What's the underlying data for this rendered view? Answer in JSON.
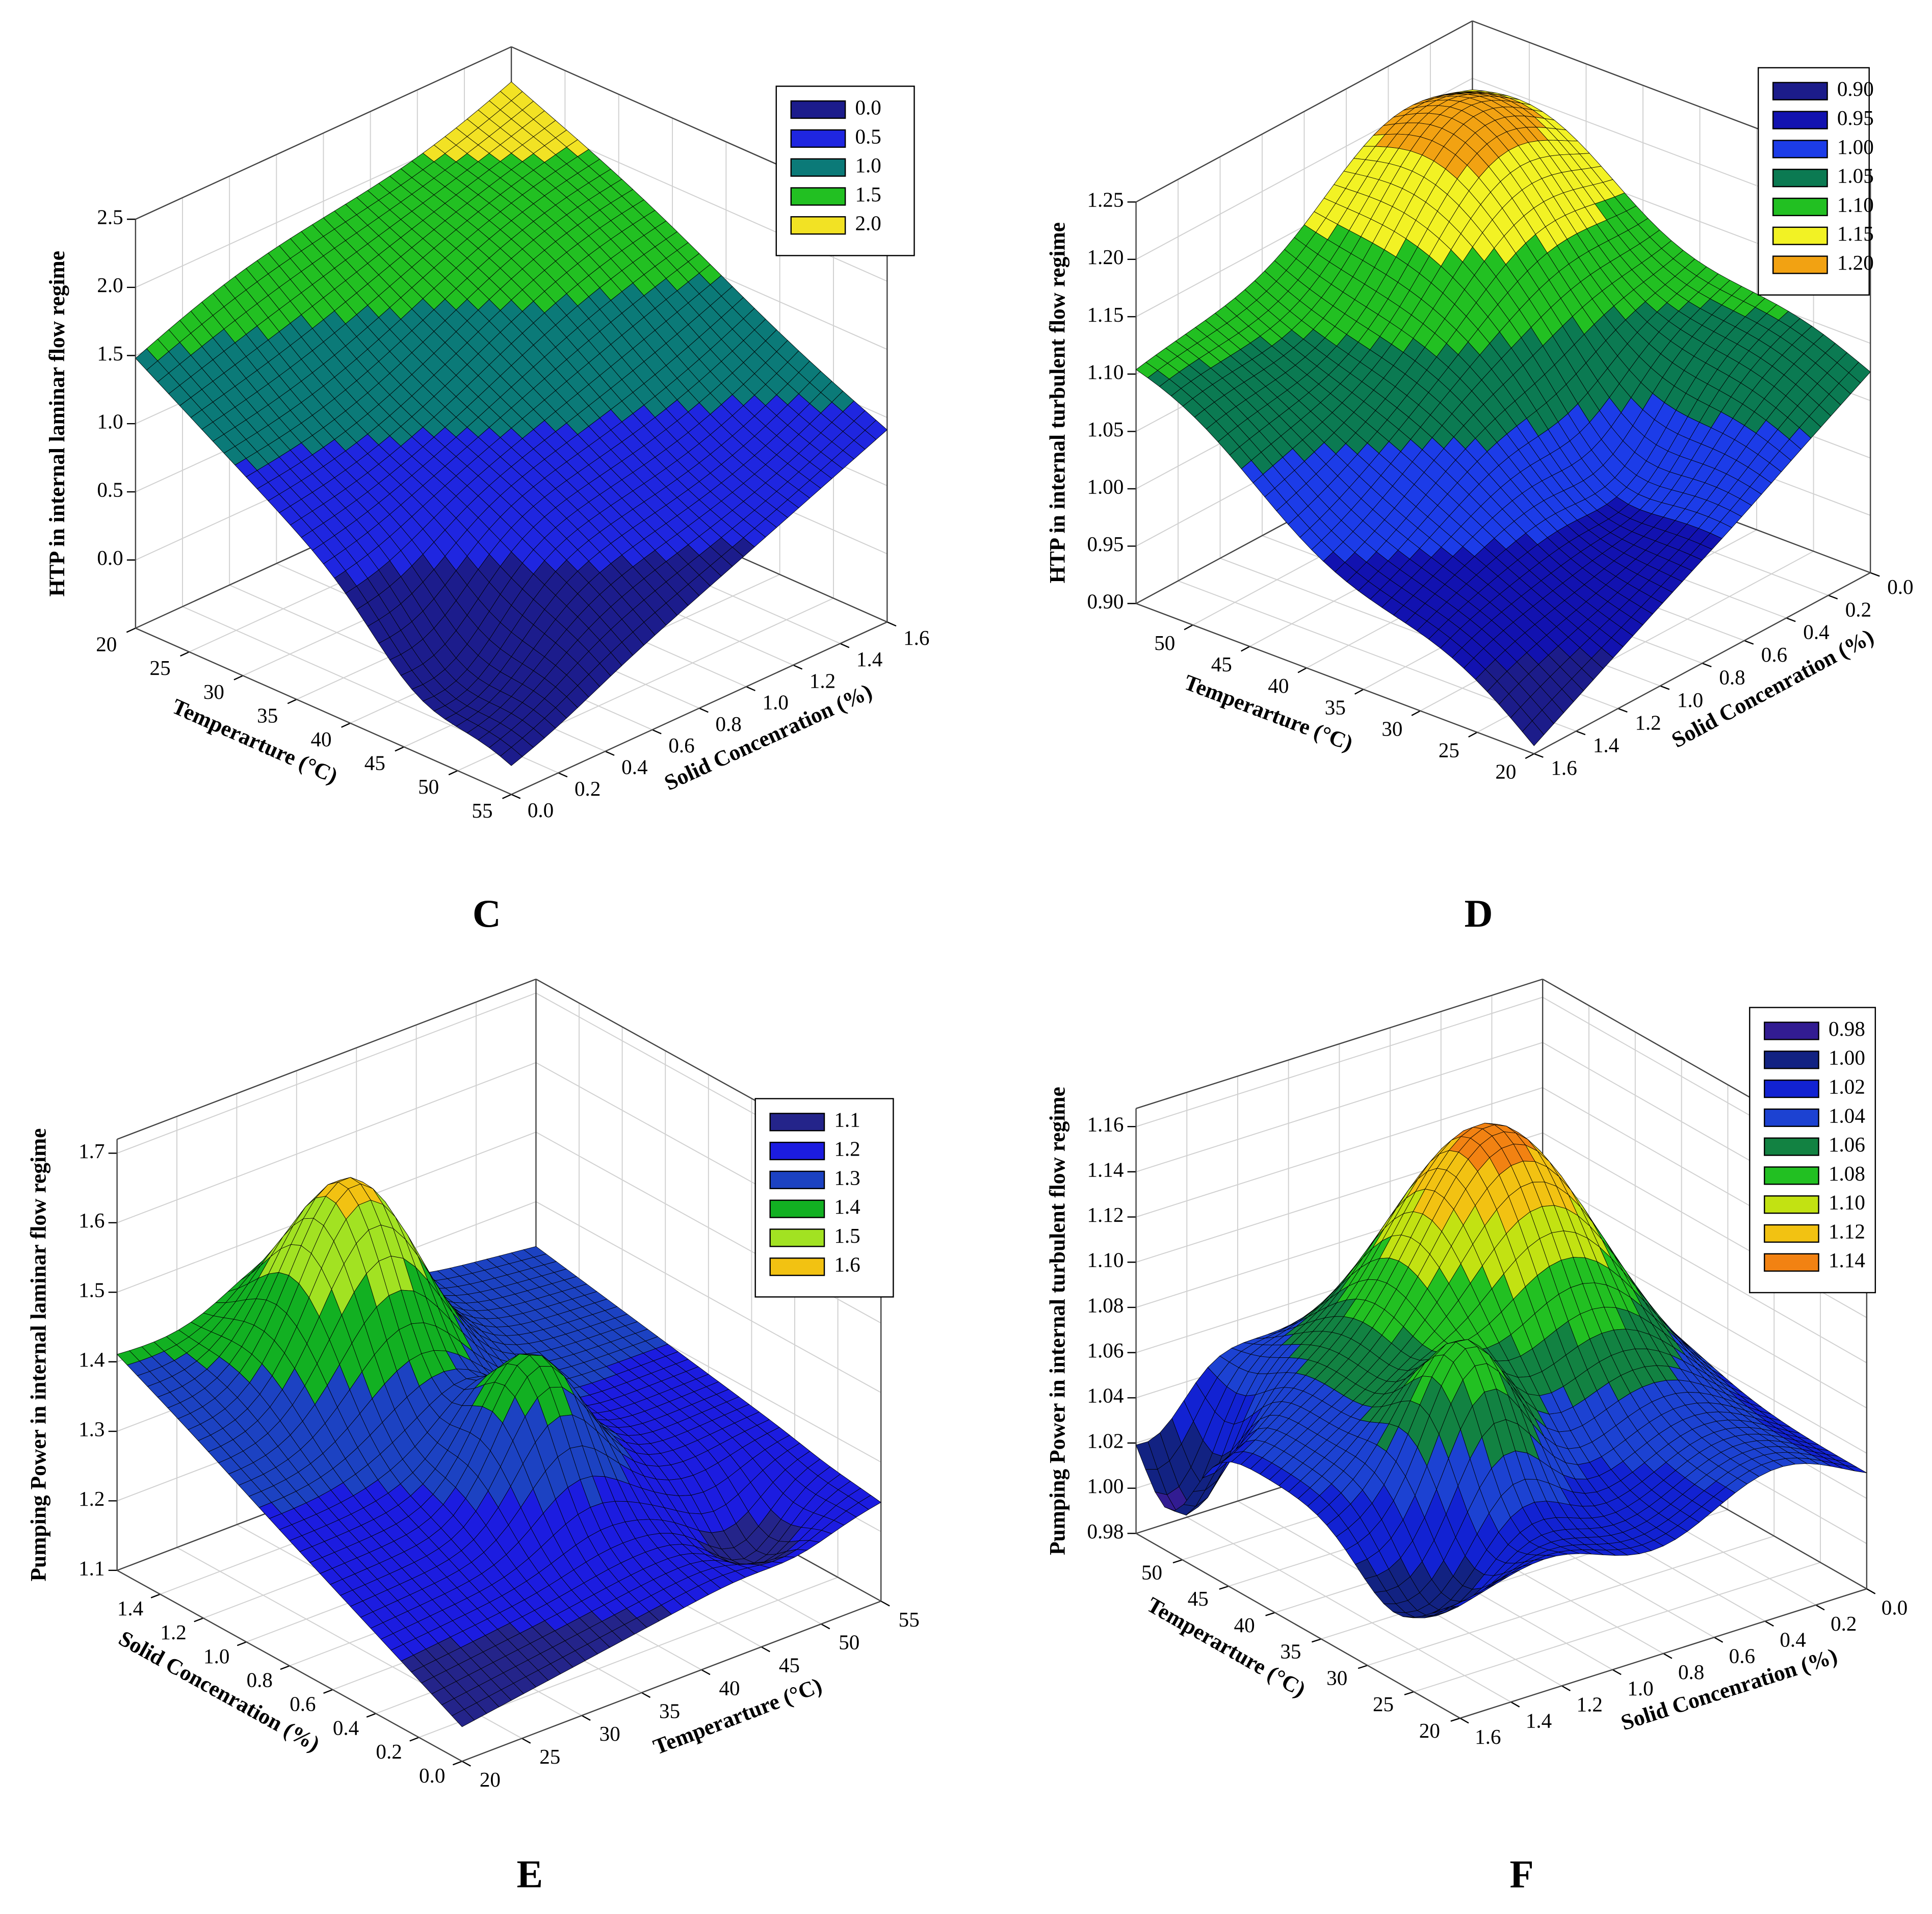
{
  "chart_data": [
    {
      "type": "surface",
      "label": "C",
      "zlabel": "HTP in internal laminar flow regime",
      "xlabel": "Temperarture (°C)",
      "ylabel": "Solid Concenration (%)",
      "xlim": [
        20,
        55
      ],
      "xticks": [
        20,
        25,
        30,
        35,
        40,
        45,
        50,
        55
      ],
      "ylim": [
        0,
        1.6
      ],
      "yticks": [
        {
          "value": 0,
          "label": "0.0"
        },
        0.2,
        0.4,
        0.6,
        0.8,
        {
          "value": 1,
          "label": "1.0"
        },
        1.2,
        1.4,
        1.6
      ],
      "zlim": [
        -0.5,
        2.5
      ],
      "zticks": [
        {
          "value": 0,
          "label": "0.0"
        },
        0.5,
        {
          "value": 1,
          "label": "1.0"
        },
        1.5,
        {
          "value": 2,
          "label": "2.0"
        },
        2.5
      ],
      "legend": [
        {
          "value": 0,
          "label": "0.0",
          "color": "#1c1c8c"
        },
        {
          "value": 0.5,
          "label": "0.5",
          "color": "#1f26e0"
        },
        {
          "value": 1,
          "label": "1.0",
          "color": "#0b7a78"
        },
        {
          "value": 1.5,
          "label": "1.5",
          "color": "#22c022"
        },
        {
          "value": 2,
          "label": "2.0",
          "color": "#f2e224"
        }
      ]
    },
    {
      "type": "surface",
      "label": "D",
      "zlabel": "HTP in internal turbulent flow regime",
      "xlabel": "Temperarture (°C)",
      "ylabel": "Solid Concenration (%)",
      "xlim": [
        20,
        55
      ],
      "xticks": [
        20,
        25,
        30,
        35,
        40,
        45,
        50
      ],
      "ylim": [
        0,
        1.6
      ],
      "yticks": [
        {
          "value": 0,
          "label": "0.0"
        },
        0.2,
        0.4,
        0.6,
        0.8,
        {
          "value": 1,
          "label": "1.0"
        },
        1.2,
        1.4,
        1.6
      ],
      "zlim": [
        0.9,
        1.25
      ],
      "zticks": [
        {
          "value": 0.9,
          "label": "0.90"
        },
        0.95,
        {
          "value": 1,
          "label": "1.00"
        },
        1.05,
        {
          "value": 1.1,
          "label": "1.10"
        },
        1.15,
        {
          "value": 1.2,
          "label": "1.20"
        },
        1.25
      ],
      "legend": [
        {
          "value": 0.9,
          "label": "0.90",
          "color": "#1c1c8a"
        },
        {
          "value": 0.95,
          "label": "0.95",
          "color": "#1212b0"
        },
        {
          "value": 1,
          "label": "1.00",
          "color": "#1c3ce8"
        },
        {
          "value": 1.05,
          "label": "1.05",
          "color": "#0b7a52"
        },
        {
          "value": 1.1,
          "label": "1.10",
          "color": "#22c022"
        },
        {
          "value": 1.15,
          "label": "1.15",
          "color": "#f2f224"
        },
        {
          "value": 1.2,
          "label": "1.20",
          "color": "#f2a212"
        }
      ]
    },
    {
      "type": "surface",
      "label": "E",
      "zlabel": "Pumping Power in internal laminar flow regime",
      "xlabel": "Temperarture (°C)",
      "ylabel": "Solid Concenration (%)",
      "xlim": [
        20,
        55
      ],
      "xticks": [
        20,
        25,
        30,
        35,
        40,
        45,
        50,
        55
      ],
      "ylim": [
        0,
        1.6
      ],
      "yticks": [
        {
          "value": 0,
          "label": "0.0"
        },
        0.2,
        0.4,
        0.6,
        0.8,
        {
          "value": 1,
          "label": "1.0"
        },
        1.2,
        1.4
      ],
      "zlim": [
        1.1,
        1.72
      ],
      "zticks": [
        1.1,
        1.2,
        1.3,
        1.4,
        1.5,
        1.6,
        1.7
      ],
      "legend": [
        {
          "value": 1.1,
          "label": "1.1",
          "color": "#24248a"
        },
        {
          "value": 1.2,
          "label": "1.2",
          "color": "#1c1ce0"
        },
        {
          "value": 1.3,
          "label": "1.3",
          "color": "#1c42c2"
        },
        {
          "value": 1.4,
          "label": "1.4",
          "color": "#12b022"
        },
        {
          "value": 1.5,
          "label": "1.5",
          "color": "#a2e222"
        },
        {
          "value": 1.6,
          "label": "1.6",
          "color": "#f2c212"
        }
      ]
    },
    {
      "type": "surface",
      "label": "F",
      "zlabel": "Pumping Power in internal turbulent flow regime",
      "xlabel": "Temperarture (°C)",
      "ylabel": "Solid Concenration (%)",
      "xlim": [
        20,
        55
      ],
      "xticks": [
        20,
        25,
        30,
        35,
        40,
        45,
        50
      ],
      "ylim": [
        0,
        1.6
      ],
      "yticks": [
        {
          "value": 0,
          "label": "0.0"
        },
        0.2,
        0.4,
        0.6,
        0.8,
        {
          "value": 1,
          "label": "1.0"
        },
        1.2,
        1.4,
        1.6
      ],
      "zlim": [
        0.98,
        1.168
      ],
      "zticks": [
        0.98,
        {
          "value": 1,
          "label": "1.00"
        },
        1.02,
        1.04,
        1.06,
        1.08,
        {
          "value": 1.1,
          "label": "1.10"
        },
        1.12,
        1.14,
        1.16
      ],
      "legend": [
        {
          "value": 0.98,
          "label": "0.98",
          "color": "#321c92"
        },
        {
          "value": 1,
          "label": "1.00",
          "color": "#122282"
        },
        {
          "value": 1.02,
          "label": "1.02",
          "color": "#1222d2"
        },
        {
          "value": 1.04,
          "label": "1.04",
          "color": "#1c42d2"
        },
        {
          "value": 1.06,
          "label": "1.06",
          "color": "#128242"
        },
        {
          "value": 1.08,
          "label": "1.08",
          "color": "#22c022"
        },
        {
          "value": 1.1,
          "label": "1.10",
          "color": "#c2e212"
        },
        {
          "value": 1.12,
          "label": "1.12",
          "color": "#f2c212"
        },
        {
          "value": 1.14,
          "label": "1.14",
          "color": "#f28212"
        }
      ]
    }
  ]
}
